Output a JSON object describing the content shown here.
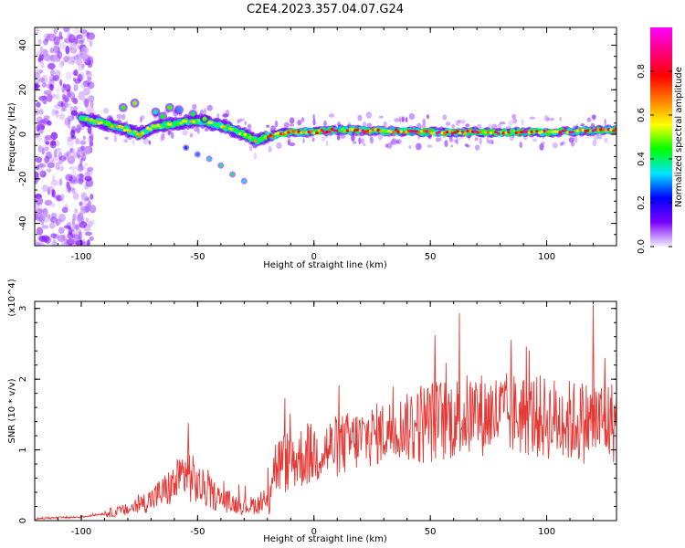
{
  "figure": {
    "title": "C2E4.2023.357.04.07.G24"
  },
  "chart_data": [
    {
      "type": "heatmap",
      "xlabel": "Height of straight line (km)",
      "ylabel": "Frequency (Hz)",
      "xlim": [
        -120,
        130
      ],
      "ylim": [
        -50,
        48
      ],
      "xticks": [
        -100,
        -50,
        0,
        50,
        100
      ],
      "yticks": [
        -40,
        -20,
        0,
        20,
        40
      ],
      "colorbar": {
        "label": "Normalized spectral amplitude",
        "range": [
          0,
          1
        ],
        "ticks": [
          0.0,
          0.2,
          0.4,
          0.6,
          0.8
        ],
        "colors": [
          "#f4f0fb",
          "#7a00ff",
          "#0000ff",
          "#00e5ff",
          "#00ff00",
          "#ffff00",
          "#ff8000",
          "#ff0000",
          "#ff0080",
          "#ff00ff"
        ]
      },
      "ridge_description_points": [
        [
          -100,
          7
        ],
        [
          -90,
          5
        ],
        [
          -80,
          2
        ],
        [
          -75,
          0
        ],
        [
          -70,
          3
        ],
        [
          -60,
          5
        ],
        [
          -50,
          6
        ],
        [
          -40,
          4
        ],
        [
          -30,
          0
        ],
        [
          -25,
          -3
        ],
        [
          -20,
          -1
        ],
        [
          -10,
          1
        ],
        [
          0,
          1
        ],
        [
          10,
          2
        ],
        [
          50,
          1
        ],
        [
          100,
          1
        ],
        [
          130,
          2
        ]
      ]
    },
    {
      "type": "line",
      "xlabel": "Height of straight line (km)",
      "ylabel": "SNR (10 * v/v)",
      "yscale_label": "(x10^4)",
      "xlim": [
        -120,
        130
      ],
      "ylim": [
        0,
        3.1
      ],
      "xticks": [
        -100,
        -50,
        0,
        50,
        100
      ],
      "yticks": [
        0,
        1,
        2,
        3
      ],
      "series": [
        {
          "color": "#e53935",
          "envelope_points": [
            [
              -120,
              0.03
            ],
            [
              -100,
              0.05
            ],
            [
              -90,
              0.1
            ],
            [
              -80,
              0.15
            ],
            [
              -70,
              0.3
            ],
            [
              -60,
              0.5
            ],
            [
              -55,
              0.7
            ],
            [
              -50,
              0.5
            ],
            [
              -40,
              0.3
            ],
            [
              -30,
              0.2
            ],
            [
              -20,
              0.25
            ],
            [
              -18,
              0.75
            ],
            [
              -10,
              0.85
            ],
            [
              0,
              0.95
            ],
            [
              10,
              1.05
            ],
            [
              20,
              1.15
            ],
            [
              30,
              1.25
            ],
            [
              40,
              1.35
            ],
            [
              50,
              1.4
            ],
            [
              60,
              1.45
            ],
            [
              70,
              1.5
            ],
            [
              80,
              1.5
            ],
            [
              90,
              1.5
            ],
            [
              100,
              1.45
            ],
            [
              110,
              1.4
            ],
            [
              120,
              1.4
            ],
            [
              130,
              1.4
            ]
          ],
          "peaks": [
            [
              -54,
              1.38
            ],
            [
              52,
              2.62
            ],
            [
              120,
              3.05
            ],
            [
              125,
              2.3
            ]
          ]
        }
      ]
    }
  ]
}
